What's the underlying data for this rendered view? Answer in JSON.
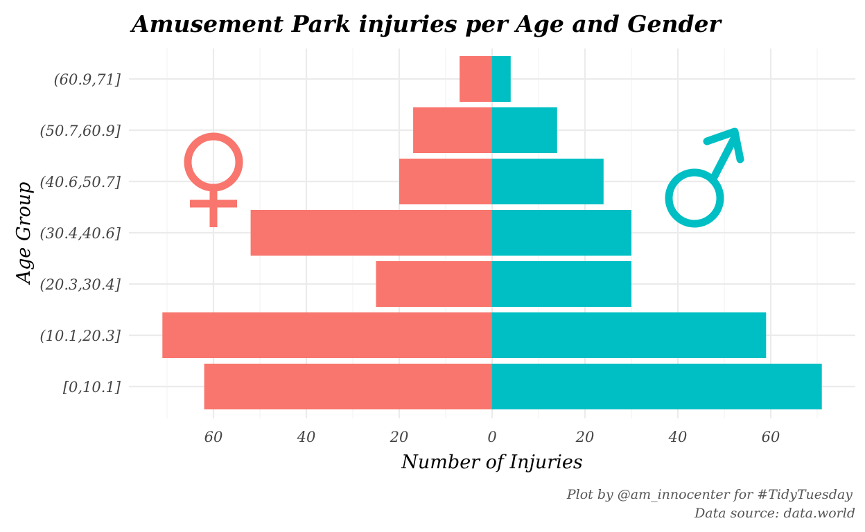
{
  "chart_data": {
    "type": "bar",
    "orientation": "horizontal-population-pyramid",
    "title": "Amusement Park injuries per Age and Gender",
    "xlabel": "Number of Injuries",
    "ylabel": "Age Group",
    "categories": [
      "[0,10.1]",
      "(10.1,20.3]",
      "(20.3,30.4]",
      "(30.4,40.6]",
      "(40.6,50.7]",
      "(50.7,60.9]",
      "(60.9,71]"
    ],
    "series": [
      {
        "key": "female",
        "color": "#F8766D",
        "side": "left",
        "icon": "female-symbol-icon",
        "values": [
          62,
          71,
          25,
          52,
          20,
          17,
          7
        ]
      },
      {
        "key": "male",
        "color": "#00BFC4",
        "side": "right",
        "icon": "male-symbol-icon",
        "values": [
          71,
          59,
          30,
          30,
          24,
          14,
          4
        ]
      }
    ],
    "xticks": [
      -60,
      -40,
      -20,
      0,
      20,
      40,
      60
    ],
    "xtick_labels": [
      "60",
      "40",
      "20",
      "0",
      "20",
      "40",
      "60"
    ],
    "xlim": [
      -71,
      71
    ],
    "grid": true,
    "legend": "none"
  },
  "caption": {
    "line1": "Plot by @am_innocenter for #TidyTuesday",
    "line2": "Data source: data.world"
  }
}
